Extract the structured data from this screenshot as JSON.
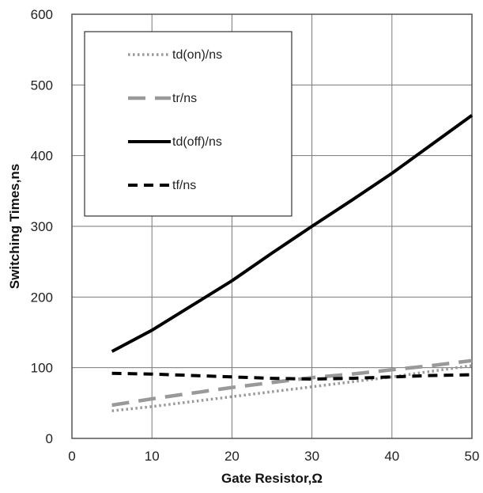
{
  "chart_data": {
    "type": "line",
    "title": "",
    "xlabel": "Gate Resistor,Ω",
    "ylabel": "Switching Times,ns",
    "xlim": [
      0,
      50
    ],
    "ylim": [
      0,
      600
    ],
    "xticks": [
      0,
      10,
      20,
      30,
      40,
      50
    ],
    "yticks": [
      0,
      100,
      200,
      300,
      400,
      500,
      600
    ],
    "grid": true,
    "legend_position": "top-left",
    "series": [
      {
        "name": "td(on)/ns",
        "color": "#999999",
        "style": "dotted",
        "x": [
          5,
          10,
          15,
          20,
          25,
          30,
          35,
          40,
          45,
          50
        ],
        "y": [
          39,
          45,
          52,
          59,
          66,
          73,
          80,
          87,
          95,
          103
        ]
      },
      {
        "name": "tr/ns",
        "color": "#999999",
        "style": "long-dash",
        "x": [
          5,
          10,
          15,
          20,
          25,
          30,
          35,
          40,
          45,
          50
        ],
        "y": [
          47,
          56,
          64,
          72,
          79,
          86,
          91,
          97,
          103,
          110
        ]
      },
      {
        "name": "td(off)/ns",
        "color": "#000000",
        "style": "solid",
        "x": [
          5,
          10,
          15,
          20,
          25,
          30,
          35,
          40,
          45,
          50
        ],
        "y": [
          123,
          153,
          188,
          223,
          262,
          300,
          337,
          375,
          416,
          457
        ]
      },
      {
        "name": "tf/ns",
        "color": "#000000",
        "style": "dashed",
        "x": [
          5,
          10,
          15,
          20,
          25,
          30,
          35,
          40,
          45,
          50
        ],
        "y": [
          92,
          91,
          89,
          87,
          85,
          84,
          85,
          87,
          89,
          90
        ]
      }
    ]
  }
}
